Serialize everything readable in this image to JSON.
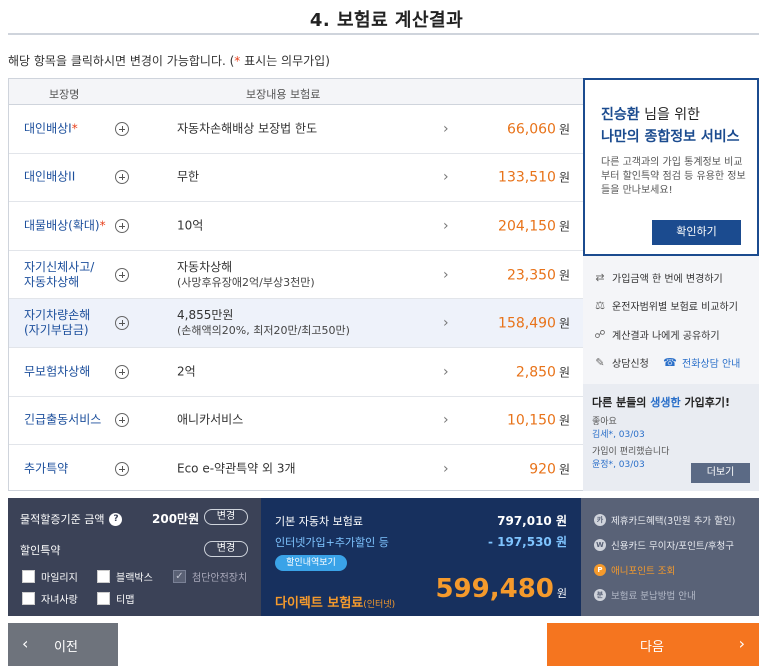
{
  "page": {
    "title": "4. 보험료 계산결과"
  },
  "notice": {
    "text": "해당 항목을 클릭하시면 변경이 가능합니다. (",
    "star": "*",
    "suffix": " 표시는 의무가입)"
  },
  "table": {
    "header_name": "보장명",
    "header_content": "보장내용  보험료",
    "rows": [
      {
        "name": "대인배상I",
        "required": "*",
        "desc": "자동차손해배상 보장법 한도",
        "sub": "",
        "price": "66,060",
        "unit": "원"
      },
      {
        "name": "대인배상II",
        "required": "",
        "desc": "무한",
        "sub": "",
        "price": "133,510",
        "unit": "원"
      },
      {
        "name": "대물배상(확대)",
        "required": "*",
        "desc": "10억",
        "sub": "",
        "price": "204,150",
        "unit": "원"
      },
      {
        "name": "자기신체사고/",
        "name2": "자동차상해",
        "required": "",
        "desc": "자동차상해",
        "sub": "(사망후유장애2억/부상3천만)",
        "price": "23,350",
        "unit": "원"
      },
      {
        "name": "자기차량손해",
        "name2": "(자기부담금)",
        "required": "",
        "desc": "4,855만원",
        "sub": "(손해액의20%, 최저20만/최고50만)",
        "price": "158,490",
        "unit": "원"
      },
      {
        "name": "무보험차상해",
        "required": "",
        "desc": "2억",
        "sub": "",
        "price": "2,850",
        "unit": "원"
      },
      {
        "name": "긴급출동서비스",
        "required": "",
        "desc": "애니카서비스",
        "sub": "",
        "price": "10,150",
        "unit": "원"
      },
      {
        "name": "추가특약",
        "required": "",
        "desc": "Eco e-약관특약 외 3개",
        "sub": "",
        "price": "920",
        "unit": "원"
      }
    ]
  },
  "side_card": {
    "user_name": "진승환",
    "greet_suffix": " 님을 위한",
    "title": "나만의 종합정보 서비스",
    "body": "다른 고객과의 가입 통계정보 비교부터 할인특약 점검 등 유용한 정보들을 만나보세요!",
    "button": "확인하기"
  },
  "side_links": {
    "change_amount": "가입금액 한 번에 변경하기",
    "compare": "운전자범위별 보험료 비교하기",
    "share": "계산결과 나에게 공유하기",
    "consult": "상담신청",
    "phone": "전화상담 안내"
  },
  "reviews": {
    "title_prefix": "다른 분들의 ",
    "title_hl": "생생한",
    "title_suffix": " 가입후기!",
    "items": [
      {
        "text": "좋아요",
        "who": "김세*",
        "date": ", 03/03"
      },
      {
        "text": "가입이 편리했습니다",
        "who": "윤정*",
        "date": ", 03/03"
      }
    ],
    "more": "더보기"
  },
  "bottom_left": {
    "property_label": "물적할증기준 금액",
    "help": "?",
    "property_amount": "200만원",
    "change": "변경",
    "discount_label": "할인특약",
    "checks": [
      "마일리지",
      "블랙박스",
      "첨단안전장치",
      "자녀사랑",
      "티맵"
    ]
  },
  "bottom_mid": {
    "base_label": "기본 자동차 보험료",
    "base_value": "797,010 원",
    "discount_label": "인터넷가입+추가할인 등",
    "discount_value": "- 197,530 원",
    "detail_button": "할인내역보기",
    "direct_label": "다이렉트 보험료",
    "direct_small": "(인터넷)",
    "total": "599,480",
    "won": "원"
  },
  "bottom_right": {
    "card": "제휴카드혜택(3만원 추가 할인)",
    "card_icon": "카",
    "credit": "신용카드 무이자/포인트/후청구",
    "credit_icon": "W",
    "point": "애니포인트 조회",
    "point_icon": "P",
    "installment": "보험료 분납방법 안내",
    "installment_icon": "분"
  },
  "nav": {
    "prev": "이전",
    "next": "다음",
    "prev_arrow": "‹",
    "next_arrow": "›"
  },
  "colors": {
    "navy": "#17305e",
    "orange": "#f5751f",
    "price": "#e8731a",
    "blue_text": "#1c4f9c"
  }
}
